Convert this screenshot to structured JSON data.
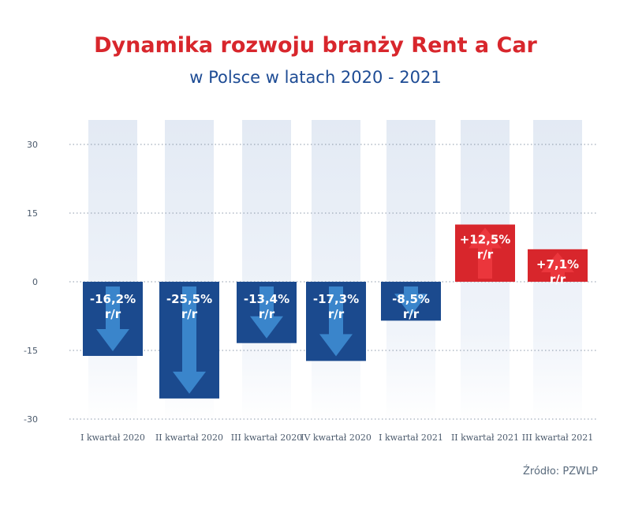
{
  "header": {
    "title": "Dynamika rozwoju branży Rent a Car",
    "subtitle": "w Polsce w latach 2020 - 2021"
  },
  "footer": {
    "source": "Źródło: PZWLP"
  },
  "chart_data": {
    "type": "bar",
    "title": "Dynamika rozwoju branży Rent a Car",
    "subtitle": "w Polsce w latach 2020 - 2021",
    "xlabel": "",
    "ylabel": "",
    "categories": [
      "I kwartał 2020",
      "II kwartał 2020",
      "III kwartał 2020",
      "IV kwartał 2020",
      "I kwartał 2021",
      "II kwartał 2021",
      "III kwartał 2021"
    ],
    "values": [
      -16.2,
      -25.5,
      -13.4,
      -17.3,
      -8.5,
      12.5,
      7.1
    ],
    "value_labels": [
      "-16,2%",
      "-25,5%",
      "-13,4%",
      "-17,3%",
      "-8,5%",
      "+12,5%",
      "+7,1%"
    ],
    "value_suffix": "r/r",
    "yticks": [
      30,
      15,
      0,
      -15,
      -30
    ],
    "ylim": [
      -30,
      35
    ],
    "grid": true,
    "legend": "none",
    "colors": {
      "negative": "#1b4a8e",
      "positive": "#d8262c",
      "arrow_negative": "#3f8fd6",
      "arrow_positive": "#ee3a3f",
      "column_background": "#e9eff7"
    }
  }
}
